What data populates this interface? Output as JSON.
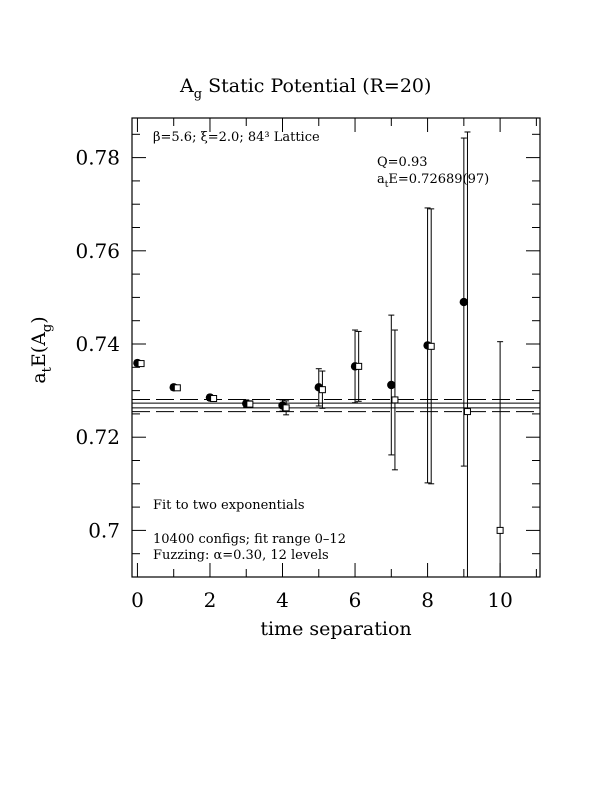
{
  "chart_data": {
    "type": "scatter",
    "title": "Ag Static Potential (R=20)",
    "title_parts": {
      "main": "A",
      "sub": "g",
      "rest": " Static Potential (R=20)"
    },
    "xlabel": "time separation",
    "ylabel": "atE(Ag)",
    "ylabel_parts": {
      "a": "a",
      "a_sub": "t",
      "mid": "E(A",
      "g_sub": "g",
      "end": ")"
    },
    "xlim": [
      -0.15,
      11.1
    ],
    "ylim": [
      0.69,
      0.7885
    ],
    "x_ticks": [
      0,
      2,
      4,
      6,
      8,
      10
    ],
    "x_tick_labels": [
      "0",
      "2",
      "4",
      "6",
      "8",
      "10"
    ],
    "y_ticks": [
      0.7,
      0.72,
      0.74,
      0.76,
      0.78
    ],
    "y_tick_labels": [
      "0.7",
      "0.72",
      "0.74",
      "0.76",
      "0.78"
    ],
    "annotations": {
      "lattice": "β=5.6; ξ=2.0; 84³ Lattice",
      "q": "Q=0.93",
      "ate_a": "a",
      "ate_t": "t",
      "ate_rest": "E=0.72689(97)",
      "fit": "Fit to two exponentials",
      "configs": "10400 configs; fit range 0–12",
      "fuzzing": "Fuzzing: α=0.30, 12 levels"
    },
    "fit": {
      "value": 0.72689,
      "error": 0.00097,
      "central_lines": [
        0.7263,
        0.7273
      ],
      "band_lines": [
        0.7255,
        0.7281
      ]
    },
    "series": [
      {
        "marker": "filled-circle",
        "points": [
          {
            "x": 0,
            "y": 0.7359,
            "err": 0.0006
          },
          {
            "x": 1,
            "y": 0.7307,
            "err": 0.0006
          },
          {
            "x": 2,
            "y": 0.7285,
            "err": 0.0006
          },
          {
            "x": 3,
            "y": 0.7272,
            "err": 0.0008
          },
          {
            "x": 4,
            "y": 0.7268,
            "err": 0.0012
          },
          {
            "x": 5,
            "y": 0.7307,
            "err": 0.004
          },
          {
            "x": 6,
            "y": 0.7352,
            "err": 0.0078
          },
          {
            "x": 7,
            "y": 0.7312,
            "err": 0.015
          },
          {
            "x": 8,
            "y": 0.7397,
            "err": 0.0295
          },
          {
            "x": 9,
            "y": 0.749,
            "err": 0.0352
          }
        ]
      },
      {
        "marker": "open-square",
        "points": [
          {
            "x": 0.1,
            "y": 0.7358,
            "err": 0.0005
          },
          {
            "x": 1.1,
            "y": 0.7306,
            "err": 0.0005
          },
          {
            "x": 2.1,
            "y": 0.7283,
            "err": 0.0005
          },
          {
            "x": 3.1,
            "y": 0.7271,
            "err": 0.0007
          },
          {
            "x": 4.1,
            "y": 0.7263,
            "err": 0.0015
          },
          {
            "x": 5.1,
            "y": 0.7302,
            "err": 0.004
          },
          {
            "x": 6.1,
            "y": 0.7352,
            "err": 0.0075
          },
          {
            "x": 7.1,
            "y": 0.728,
            "err": 0.015
          },
          {
            "x": 8.1,
            "y": 0.7395,
            "err": 0.0295
          },
          {
            "x": 9.1,
            "y": 0.7255,
            "err": 0.06
          },
          {
            "x": 10.0,
            "y": 0.7,
            "err": 0.0405
          }
        ]
      }
    ]
  }
}
